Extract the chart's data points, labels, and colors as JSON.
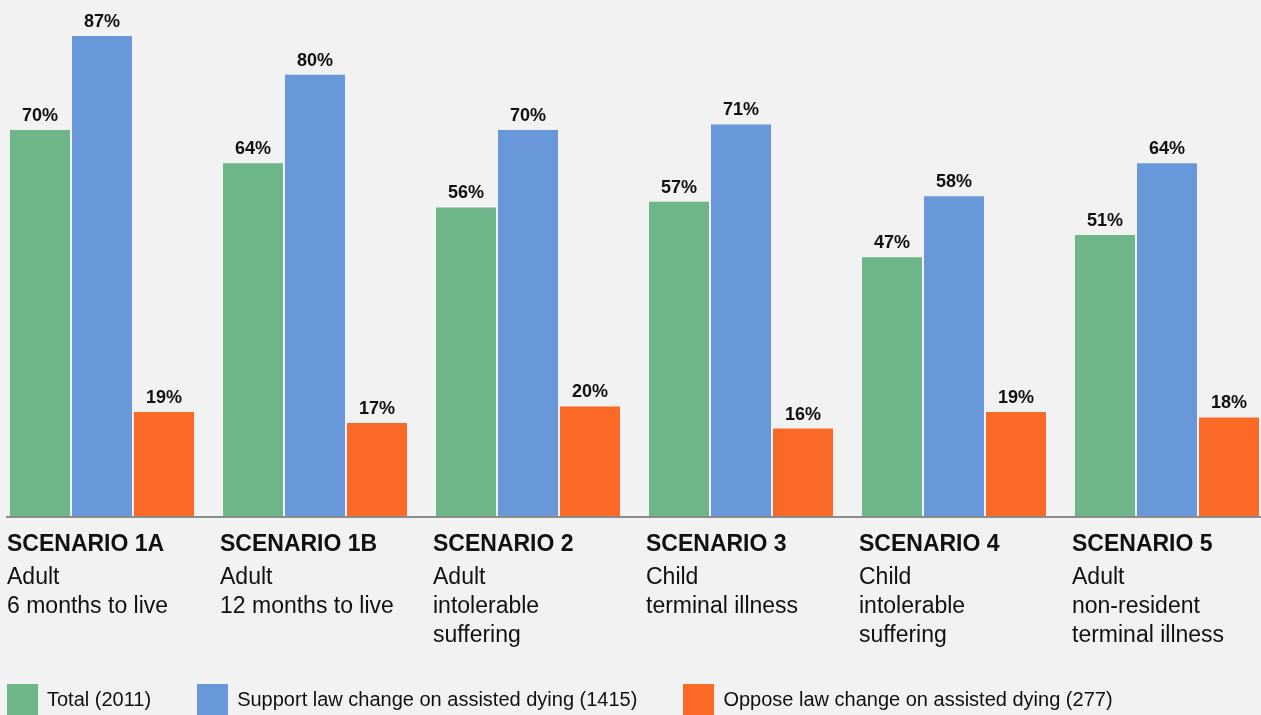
{
  "chart_data": {
    "type": "bar",
    "categories": [
      "SCENARIO 1A\nAdult\n6 months to live",
      "SCENARIO 1B\nAdult\n12 months to live",
      "SCENARIO 2\nAdult\nintolerable\nsuffering",
      "SCENARIO 3\nChild\nterminal illness",
      "SCENARIO 4\nChild\nintolerable\nsuffering",
      "SCENARIO 5\nAdult\nnon-resident\nterminal illness"
    ],
    "series": [
      {
        "name": "Total (2011)",
        "color": "#6eb589",
        "values": [
          70,
          64,
          56,
          57,
          47,
          51
        ],
        "value_labels": [
          "70%",
          "64%",
          "56%",
          "57%",
          "47%",
          "51%"
        ]
      },
      {
        "name": "Support law change on assisted dying (1415)",
        "color": "#6898da",
        "values": [
          87,
          80,
          70,
          71,
          58,
          64
        ],
        "value_labels": [
          "87%",
          "80%",
          "70%",
          "71%",
          "58%",
          "64%"
        ]
      },
      {
        "name": "Oppose law change on assisted dying (277)",
        "color": "#fa6a26",
        "values": [
          19,
          17,
          20,
          16,
          19,
          18
        ],
        "value_labels": [
          "19%",
          "17%",
          "20%",
          "16%",
          "19%",
          "18%"
        ]
      }
    ],
    "legend": "bottom left"
  }
}
